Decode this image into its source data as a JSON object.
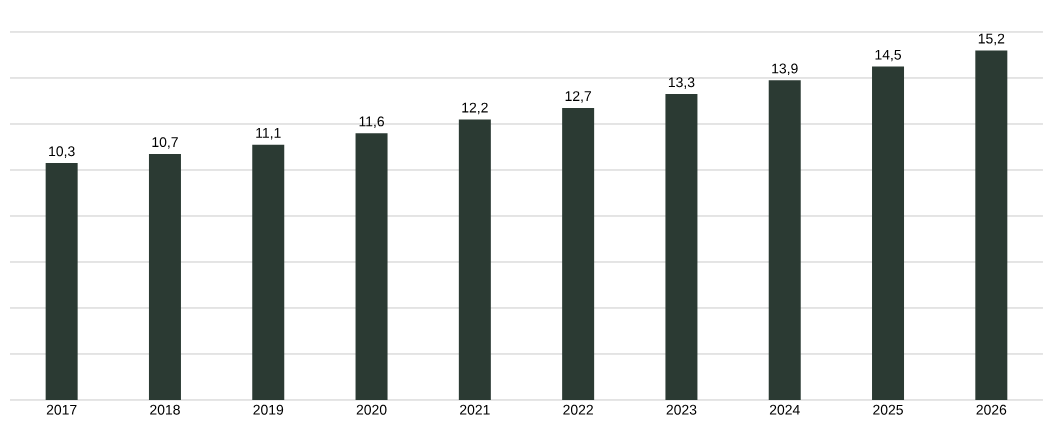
{
  "chart_data": {
    "type": "bar",
    "categories": [
      "2017",
      "2018",
      "2019",
      "2020",
      "2021",
      "2022",
      "2023",
      "2024",
      "2025",
      "2026"
    ],
    "values": [
      10.3,
      10.7,
      11.1,
      11.6,
      12.2,
      12.7,
      13.3,
      13.9,
      14.5,
      15.2
    ],
    "value_labels": [
      "10,3",
      "10,7",
      "11,1",
      "11,6",
      "12,2",
      "12,7",
      "13,3",
      "13,9",
      "14,5",
      "15,2"
    ],
    "color": "#2b3a33",
    "ylim": [
      0,
      16
    ],
    "yticks": [
      {
        "value": 0,
        "label": null
      },
      {
        "value": 2,
        "label": null
      },
      {
        "value": 4,
        "label": null
      },
      {
        "value": 6,
        "label": null
      },
      {
        "value": 8,
        "label": null
      },
      {
        "value": 10,
        "label": null
      },
      {
        "value": 12,
        "label": null
      },
      {
        "value": 14,
        "label": null
      },
      {
        "value": 16,
        "label": null
      }
    ],
    "grid": "y"
  }
}
